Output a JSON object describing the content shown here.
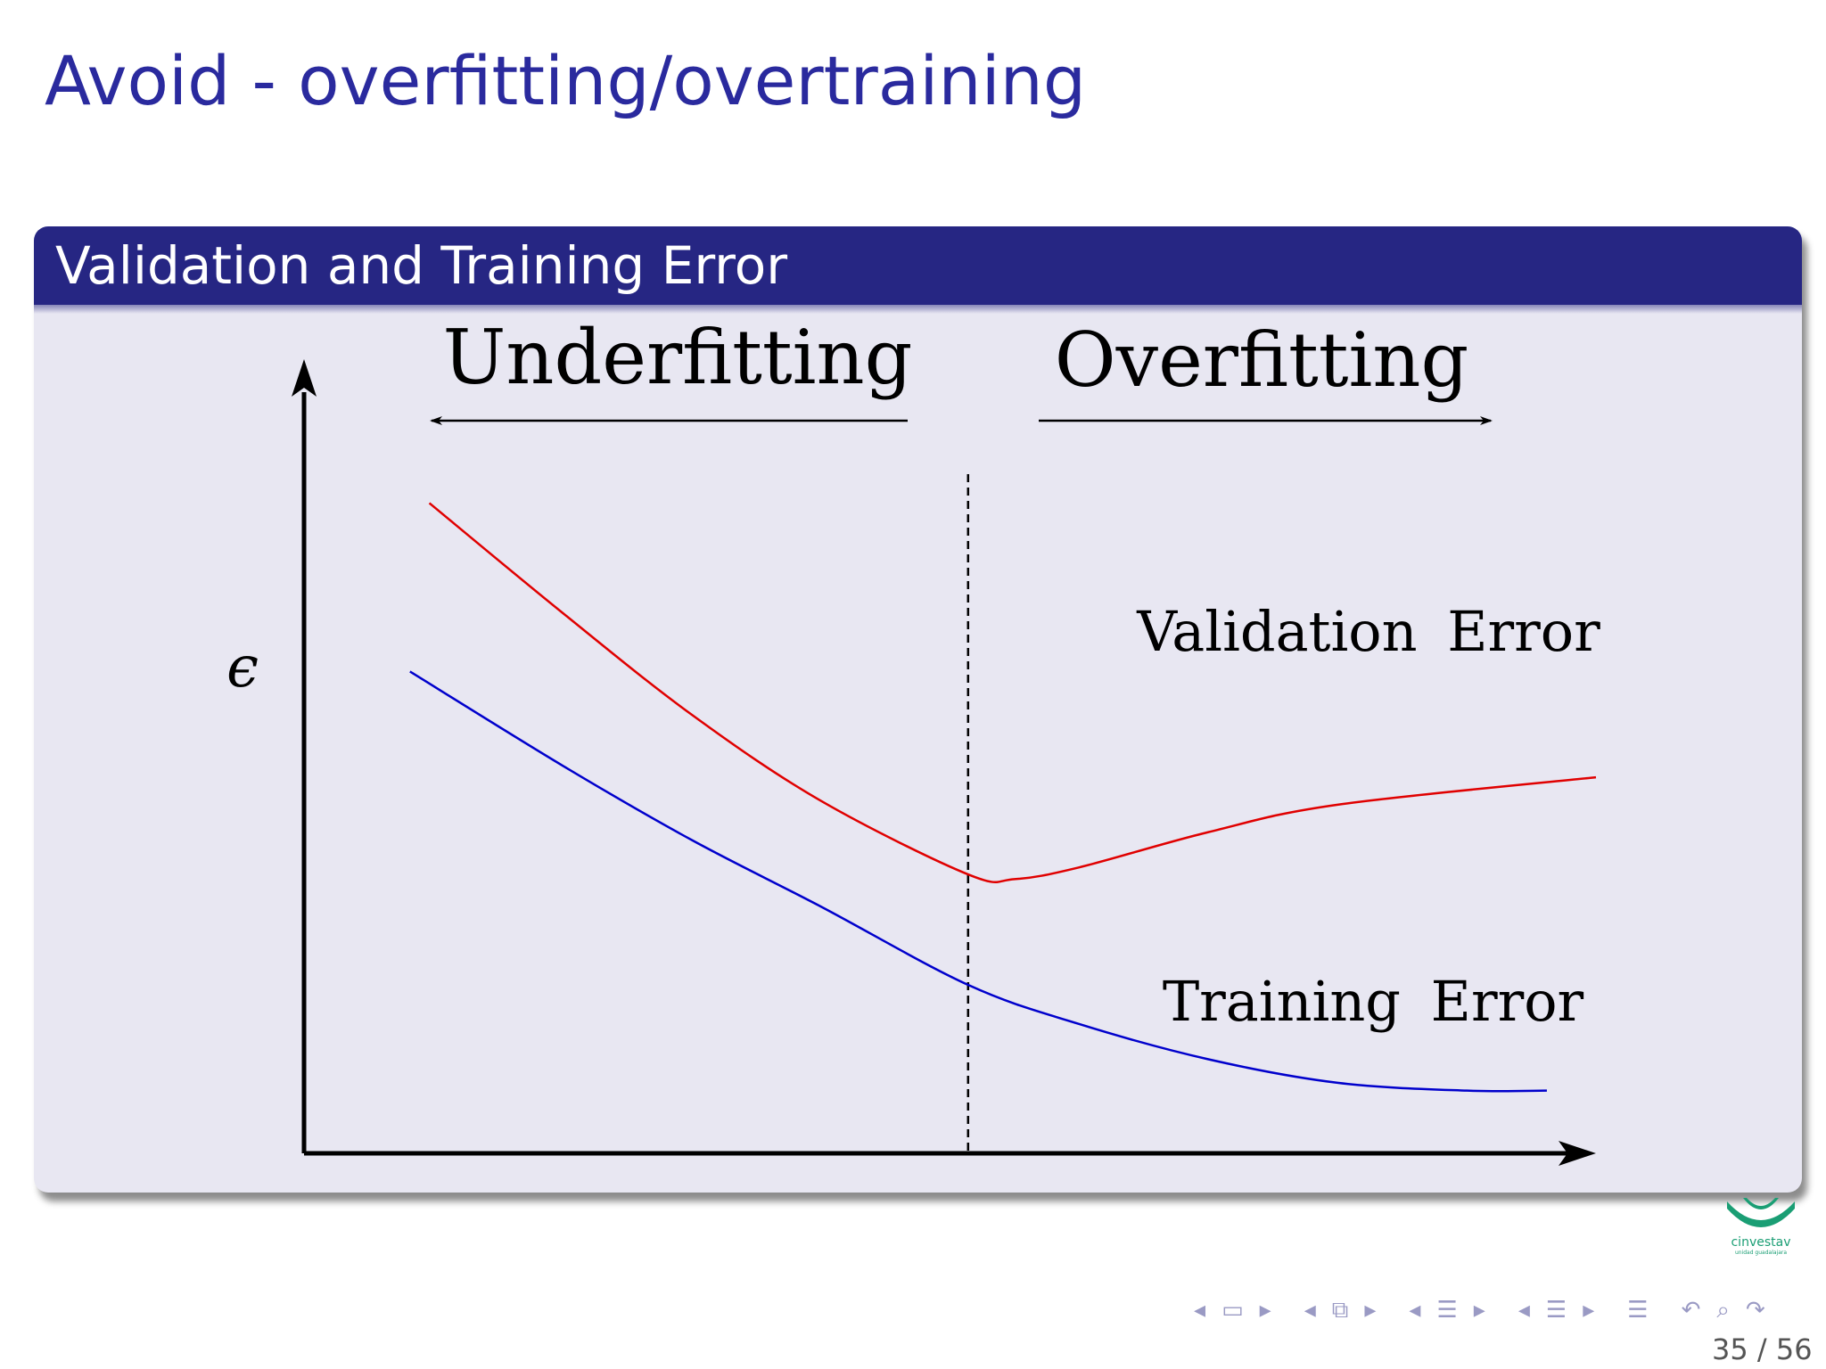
{
  "slide": {
    "title": "Avoid - overfitting/overtraining",
    "block_title": "Validation and Training Error",
    "page": "35 / 56",
    "logo_text": "cinvestav",
    "logo_subtext": "unidad guadalajara"
  },
  "chart_data": {
    "type": "line",
    "title": "",
    "xlabel": "",
    "ylabel": "ϵ",
    "xlim": [
      0,
      100
    ],
    "ylim": [
      0,
      100
    ],
    "grid": false,
    "regions": [
      {
        "label": "Underfitting",
        "arrow": "left"
      },
      {
        "label": "Overfitting",
        "arrow": "right"
      }
    ],
    "marker_x": 51.4,
    "series": [
      {
        "name": "Validation Error",
        "color": "#e00000",
        "x": [
          9.7,
          20,
          30,
          40,
          51.4,
          55,
          60,
          70,
          80,
          100
        ],
        "y": [
          83,
          69,
          56,
          45,
          35.6,
          35,
          36.5,
          41,
          44.5,
          48
        ]
      },
      {
        "name": "Training Error",
        "color": "#0000cc",
        "x": [
          8.2,
          20,
          30,
          40,
          51.4,
          60,
          70,
          80,
          90,
          96.2
        ],
        "y": [
          61.5,
          49.5,
          40,
          31.5,
          21.5,
          16.5,
          12,
          9,
          8,
          8
        ]
      }
    ]
  },
  "nav_icons": [
    "arrow-left-icon",
    "frame-icon",
    "arrow-right-icon",
    "arrow-left-icon",
    "subsection-icon",
    "arrow-right-icon",
    "arrow-left-icon",
    "section-icon",
    "arrow-right-icon",
    "arrow-left-icon",
    "doc-icon",
    "arrow-right-icon",
    "menu-icon",
    "undo-icon",
    "search-icon",
    "redo-icon"
  ]
}
